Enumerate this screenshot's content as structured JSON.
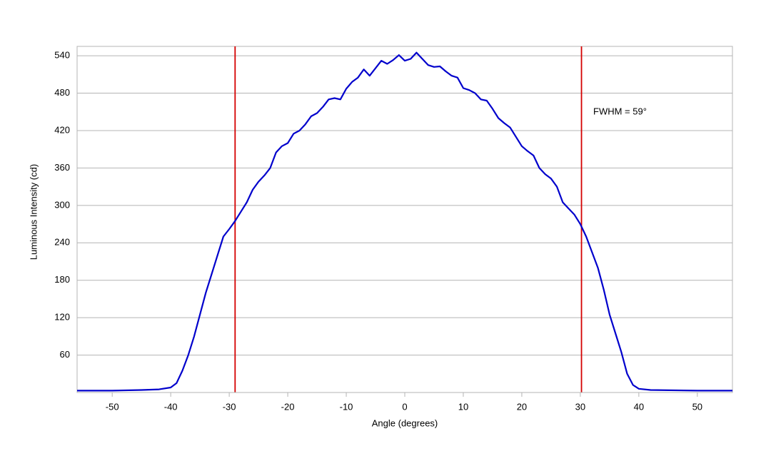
{
  "chart_data": {
    "type": "line",
    "xlabel": "Angle (degrees)",
    "ylabel": "Luminous Intensity (cd)",
    "annotation": "FWHM = 59°",
    "x": [
      -56,
      -50,
      -45,
      -42,
      -40,
      -39,
      -38,
      -37,
      -36,
      -35,
      -34,
      -33,
      -32,
      -31,
      -30,
      -29,
      -28,
      -27,
      -26,
      -25,
      -24,
      -23,
      -22,
      -21,
      -20,
      -19,
      -18,
      -17,
      -16,
      -15,
      -14,
      -13,
      -12,
      -11,
      -10,
      -9,
      -8,
      -7,
      -6,
      -5,
      -4,
      -3,
      -2,
      -1,
      0,
      1,
      2,
      3,
      4,
      5,
      6,
      7,
      8,
      9,
      10,
      11,
      12,
      13,
      14,
      15,
      16,
      17,
      18,
      19,
      20,
      21,
      22,
      23,
      24,
      25,
      26,
      27,
      28,
      29,
      30,
      31,
      32,
      33,
      34,
      35,
      36,
      37,
      38,
      39,
      40,
      42,
      50,
      56
    ],
    "series": [
      {
        "color": "#0000cc",
        "values": [
          3,
          3,
          4,
          5,
          8,
          15,
          35,
          60,
          90,
          125,
          160,
          190,
          220,
          250,
          262,
          275,
          290,
          305,
          325,
          338,
          348,
          360,
          385,
          395,
          400,
          415,
          420,
          430,
          443,
          448,
          458,
          470,
          472,
          470,
          487,
          498,
          505,
          518,
          508,
          520,
          532,
          527,
          533,
          541,
          532,
          535,
          545,
          535,
          525,
          522,
          523,
          515,
          508,
          505,
          488,
          485,
          480,
          470,
          468,
          455,
          440,
          432,
          425,
          410,
          395,
          387,
          380,
          360,
          350,
          343,
          330,
          305,
          295,
          285,
          270,
          250,
          225,
          200,
          165,
          125,
          95,
          65,
          30,
          12,
          6,
          4,
          3,
          3
        ]
      }
    ],
    "vlines": [
      {
        "value": -29,
        "color": "#d40000"
      },
      {
        "value": 30.2,
        "color": "#d40000"
      }
    ],
    "xlim": [
      -56,
      56
    ],
    "ylim": [
      0,
      555
    ],
    "xticks": [
      -50,
      -40,
      -30,
      -20,
      -10,
      0,
      10,
      20,
      30,
      40,
      50
    ],
    "yticks": [
      60,
      120,
      180,
      240,
      300,
      360,
      420,
      480,
      540
    ],
    "grid": true
  }
}
